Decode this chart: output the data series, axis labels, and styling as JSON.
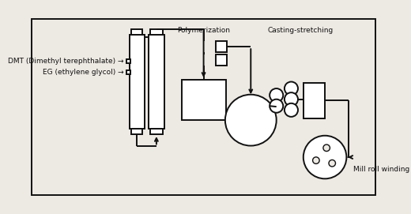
{
  "bg_color": "#ede9e3",
  "line_color": "#111111",
  "labels": {
    "dmt": "DMT (Dimethyl terephthalate)",
    "eg": "EG (ethylene glycol)",
    "polymerization": "Polymerization",
    "casting": "Casting-stretching",
    "mill_roll": "Mill roll winding"
  },
  "fontsize": 6.5
}
